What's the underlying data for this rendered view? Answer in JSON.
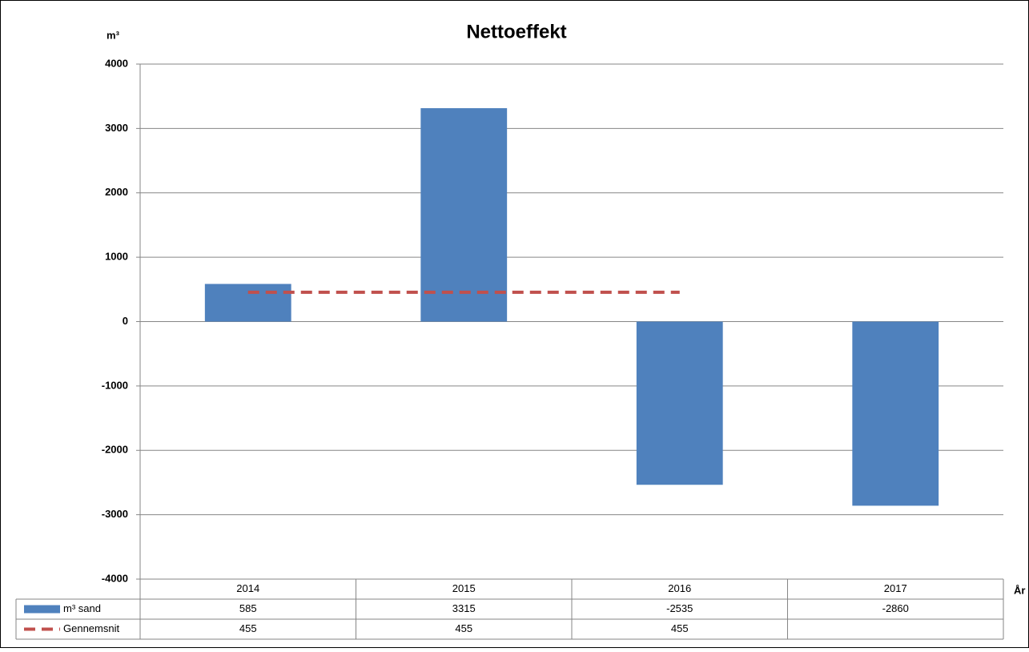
{
  "chart_data": {
    "type": "bar",
    "title": "Nettoeffekt",
    "y_label": "m³",
    "x_label": "År",
    "categories": [
      "2014",
      "2015",
      "2016",
      "2017"
    ],
    "series": [
      {
        "name": "m³ sand",
        "type": "bar",
        "color": "#4f81bd",
        "values": [
          585,
          3315,
          -2535,
          -2860
        ]
      },
      {
        "name": "Gennemsnit",
        "type": "line",
        "color": "#c0504d",
        "dashed": true,
        "values": [
          455,
          455,
          455,
          null
        ]
      }
    ],
    "ylim": [
      -4000,
      4000
    ],
    "yticks": [
      -4000,
      -3000,
      -2000,
      -1000,
      0,
      1000,
      2000,
      3000,
      4000
    ],
    "grid": true,
    "data_table": true
  }
}
